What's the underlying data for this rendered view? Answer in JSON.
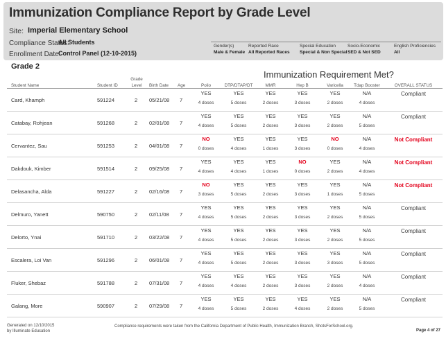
{
  "report": {
    "title": "Immunization Compliance Report by Grade Level",
    "site_label": "Site:",
    "site_value": "Imperial Elementary School",
    "compliance_label": "Compliance Status:",
    "compliance_value": "All Students",
    "enrollment_label": "Enrollment Date:",
    "enrollment_value": "Control Panel (12-10-2015)"
  },
  "filters": [
    {
      "label": "Gender(s)",
      "value": "Male & Female"
    },
    {
      "label": "Reported Race",
      "value": "All Reported Races"
    },
    {
      "label": "Special Education",
      "value": "Special & Non Special"
    },
    {
      "label": "Socio-Economic",
      "value": "SED & Not SED"
    },
    {
      "label": "English Proficiencies",
      "value": "All"
    }
  ],
  "grade_heading": "Grade 2",
  "requirement_heading": "Immunization Requirement Met?",
  "columns": {
    "student_name": "Student Name",
    "student_id": "Student ID",
    "grade_level_1": "Grade",
    "grade_level_2": "Level",
    "birth_date": "Birth Date",
    "age": "Age",
    "vaccines": [
      "Polio",
      "DTP/DTAP/DT",
      "MMR",
      "Hep B",
      "Varicella",
      "Tdap Booster"
    ],
    "overall": "OVERALL STATUS"
  },
  "students": [
    {
      "name": "Card, Khamph",
      "id": "591224",
      "grade": "2",
      "birth": "05/21/08",
      "age": "7",
      "vac": [
        {
          "met": "YES",
          "doses": "4 doses"
        },
        {
          "met": "YES",
          "doses": "5 doses"
        },
        {
          "met": "YES",
          "doses": "2 doses"
        },
        {
          "met": "YES",
          "doses": "3 doses"
        },
        {
          "met": "YES",
          "doses": "2 doses"
        },
        {
          "met": "N/A",
          "doses": "4 doses"
        }
      ],
      "status": "Compliant"
    },
    {
      "name": "Catabay, Rohjean",
      "id": "591268",
      "grade": "2",
      "birth": "02/01/08",
      "age": "7",
      "vac": [
        {
          "met": "YES",
          "doses": "4 doses"
        },
        {
          "met": "YES",
          "doses": "5 doses"
        },
        {
          "met": "YES",
          "doses": "2 doses"
        },
        {
          "met": "YES",
          "doses": "3 doses"
        },
        {
          "met": "YES",
          "doses": "2 doses"
        },
        {
          "met": "N/A",
          "doses": "5 doses"
        }
      ],
      "status": "Compliant"
    },
    {
      "name": "Cervantez, Sau",
      "id": "591253",
      "grade": "2",
      "birth": "04/01/08",
      "age": "7",
      "vac": [
        {
          "met": "NO",
          "doses": "0 doses"
        },
        {
          "met": "YES",
          "doses": "4 doses"
        },
        {
          "met": "YES",
          "doses": "1 doses"
        },
        {
          "met": "YES",
          "doses": "3 doses"
        },
        {
          "met": "NO",
          "doses": "0 doses"
        },
        {
          "met": "N/A",
          "doses": "4 doses"
        }
      ],
      "status": "Not Compliant"
    },
    {
      "name": "Dakdouk, Kimber",
      "id": "591514",
      "grade": "2",
      "birth": "09/25/08",
      "age": "7",
      "vac": [
        {
          "met": "YES",
          "doses": "4 doses"
        },
        {
          "met": "YES",
          "doses": "4 doses"
        },
        {
          "met": "YES",
          "doses": "1 doses"
        },
        {
          "met": "NO",
          "doses": "0 doses"
        },
        {
          "met": "YES",
          "doses": "2 doses"
        },
        {
          "met": "N/A",
          "doses": "4 doses"
        }
      ],
      "status": "Not Compliant"
    },
    {
      "name": "Delasancha, Alda",
      "id": "591227",
      "grade": "2",
      "birth": "02/16/08",
      "age": "7",
      "vac": [
        {
          "met": "NO",
          "doses": "3 doses"
        },
        {
          "met": "YES",
          "doses": "5 doses"
        },
        {
          "met": "YES",
          "doses": "2 doses"
        },
        {
          "met": "YES",
          "doses": "3 doses"
        },
        {
          "met": "YES",
          "doses": "1 doses"
        },
        {
          "met": "N/A",
          "doses": "5 doses"
        }
      ],
      "status": "Not Compliant"
    },
    {
      "name": "Delmuro, Yanett",
      "id": "590750",
      "grade": "2",
      "birth": "02/11/08",
      "age": "7",
      "vac": [
        {
          "met": "YES",
          "doses": "4 doses"
        },
        {
          "met": "YES",
          "doses": "5 doses"
        },
        {
          "met": "YES",
          "doses": "2 doses"
        },
        {
          "met": "YES",
          "doses": "3 doses"
        },
        {
          "met": "YES",
          "doses": "2 doses"
        },
        {
          "met": "N/A",
          "doses": "5 doses"
        }
      ],
      "status": "Compliant"
    },
    {
      "name": "Delorto, Ynai",
      "id": "591710",
      "grade": "2",
      "birth": "03/22/08",
      "age": "7",
      "vac": [
        {
          "met": "YES",
          "doses": "4 doses"
        },
        {
          "met": "YES",
          "doses": "5 doses"
        },
        {
          "met": "YES",
          "doses": "2 doses"
        },
        {
          "met": "YES",
          "doses": "3 doses"
        },
        {
          "met": "YES",
          "doses": "2 doses"
        },
        {
          "met": "N/A",
          "doses": "5 doses"
        }
      ],
      "status": "Compliant"
    },
    {
      "name": "Escalera, Loi Van",
      "id": "591296",
      "grade": "2",
      "birth": "06/01/08",
      "age": "7",
      "vac": [
        {
          "met": "YES",
          "doses": "4 doses"
        },
        {
          "met": "YES",
          "doses": "5 doses"
        },
        {
          "met": "YES",
          "doses": "2 doses"
        },
        {
          "met": "YES",
          "doses": "3 doses"
        },
        {
          "met": "YES",
          "doses": "3 doses"
        },
        {
          "met": "N/A",
          "doses": "5 doses"
        }
      ],
      "status": "Compliant"
    },
    {
      "name": "Fluker, Shebaz",
      "id": "591788",
      "grade": "2",
      "birth": "07/31/08",
      "age": "7",
      "vac": [
        {
          "met": "YES",
          "doses": "4 doses"
        },
        {
          "met": "YES",
          "doses": "4 doses"
        },
        {
          "met": "YES",
          "doses": "2 doses"
        },
        {
          "met": "YES",
          "doses": "3 doses"
        },
        {
          "met": "YES",
          "doses": "2 doses"
        },
        {
          "met": "N/A",
          "doses": "4 doses"
        }
      ],
      "status": "Compliant"
    },
    {
      "name": "Galang, More",
      "id": "590907",
      "grade": "2",
      "birth": "07/29/08",
      "age": "7",
      "vac": [
        {
          "met": "YES",
          "doses": "4 doses"
        },
        {
          "met": "YES",
          "doses": "5 doses"
        },
        {
          "met": "YES",
          "doses": "2 doses"
        },
        {
          "met": "YES",
          "doses": "4 doses"
        },
        {
          "met": "YES",
          "doses": "2 doses"
        },
        {
          "met": "N/A",
          "doses": "5 doses"
        }
      ],
      "status": "Compliant"
    }
  ],
  "footer": {
    "generated_1": "Generated on 12/10/2015",
    "generated_2": "by Illuminate Education",
    "source_note": "Compliance requirements were taken from the California Department of Public Health, Immunization Branch, ShotsForSchool.org.",
    "page": "Page 4 of 27"
  },
  "colors": {
    "not_met": "#e3001b",
    "header_band": "#dcdcdc"
  }
}
